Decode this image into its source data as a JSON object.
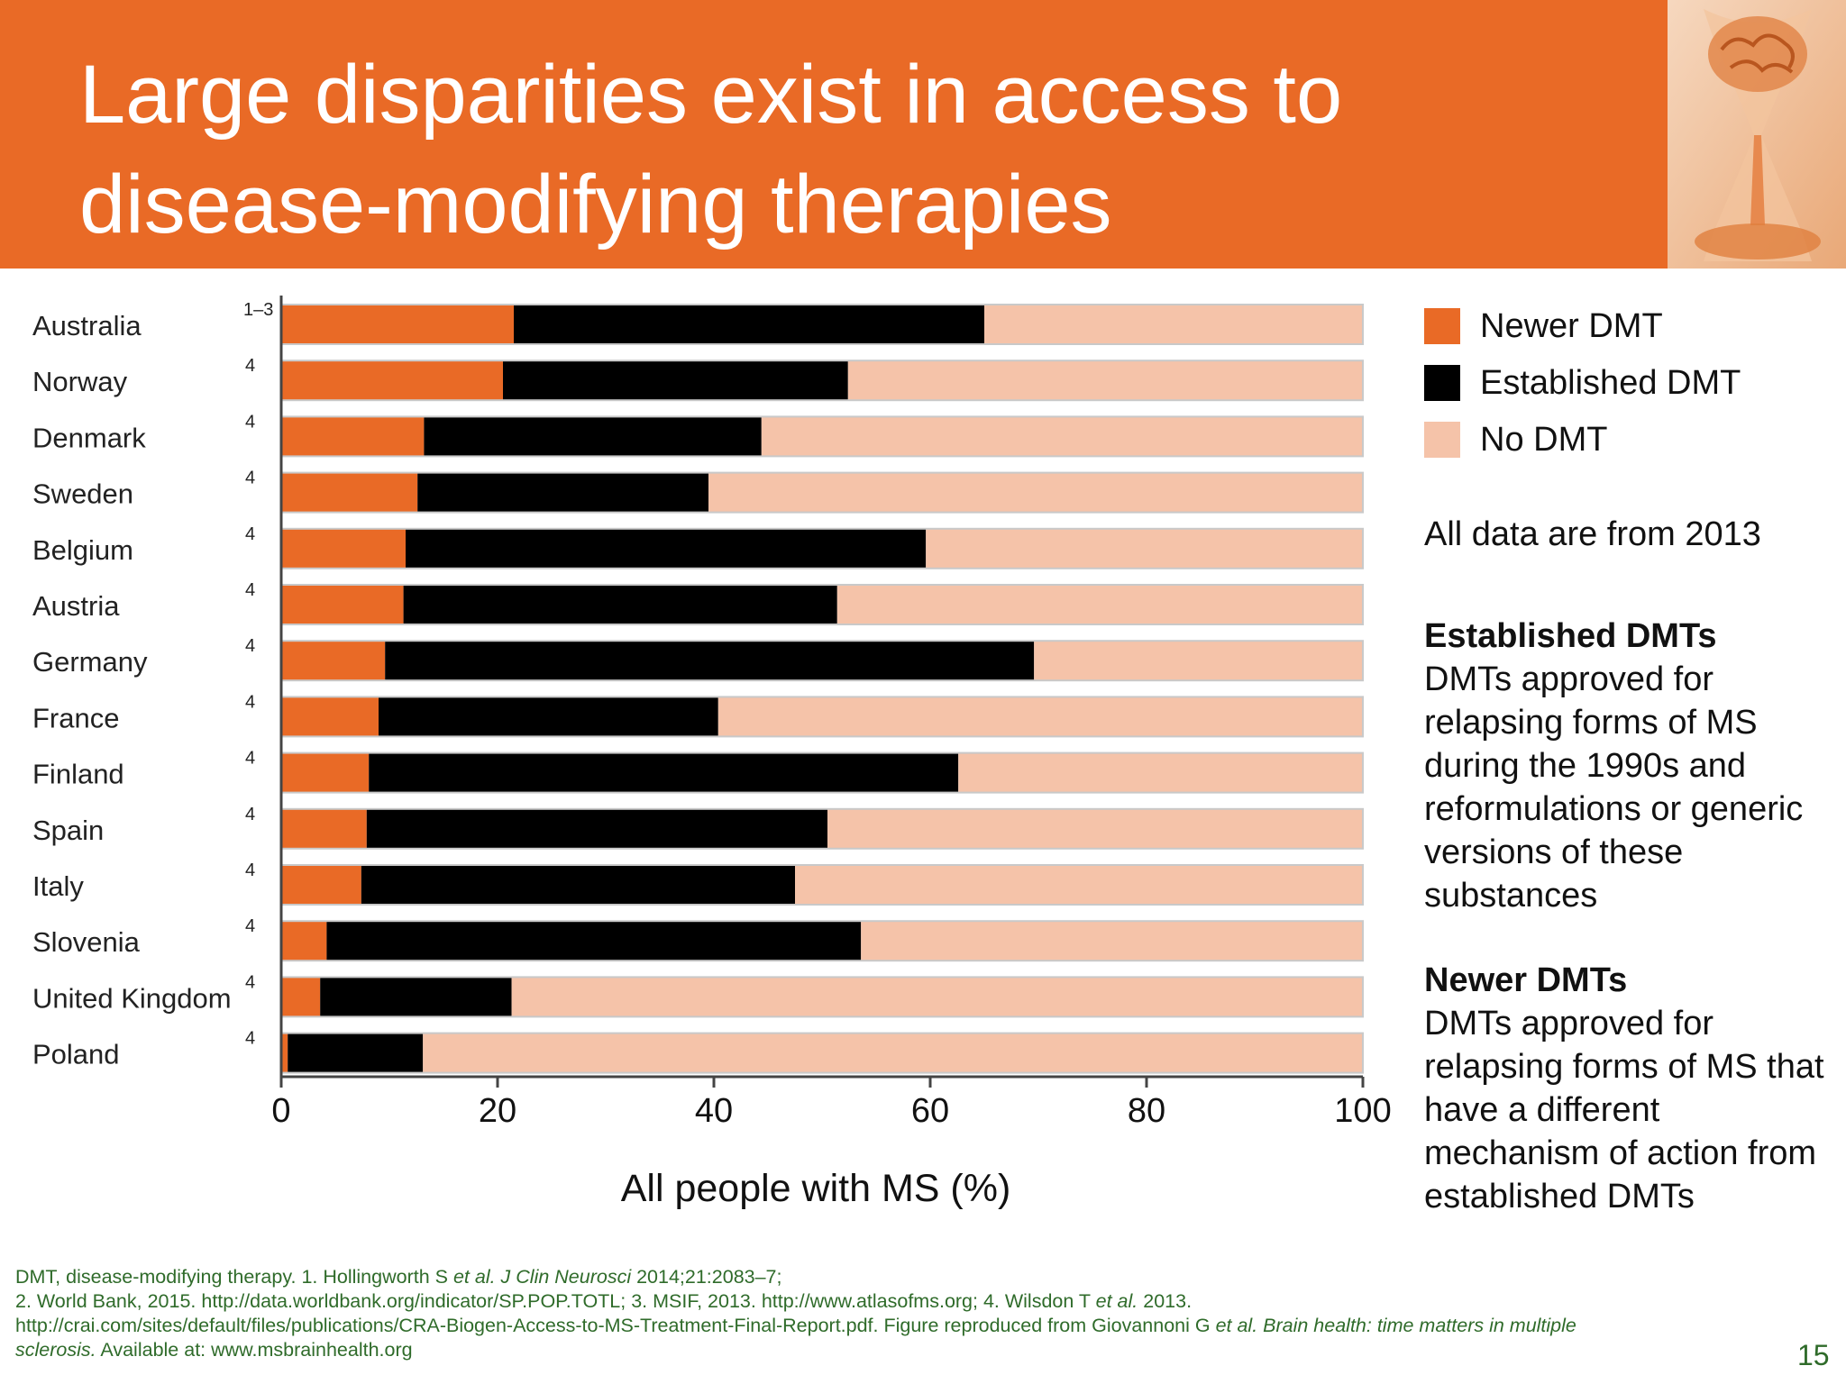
{
  "slide": {
    "title_line1": "Large disparities exist in access to",
    "title_line2": "disease-modifying therapies",
    "page_number": "15"
  },
  "legend": {
    "items": [
      {
        "label": "Newer DMT",
        "color": "#e96a26"
      },
      {
        "label": "Established DMT",
        "color": "#000000"
      },
      {
        "label": "No DMT",
        "color": "#f5c3a9"
      }
    ]
  },
  "notes": {
    "year_note": "All data are from 2013",
    "established_title": "Established DMTs",
    "established_body": "DMTs approved for relapsing forms of MS during the 1990s and reformulations or generic versions of these substances",
    "newer_title": "Newer DMTs",
    "newer_body": "DMTs approved for relapsing forms of MS that have a different mechanism of action from established DMTs"
  },
  "footnote": {
    "line1_a": "DMT, disease-modifying therapy. 1. Hollingworth S ",
    "line1_b": "et al. J Clin Neurosci",
    "line1_c": " 2014;21:2083–7;",
    "line2_a": "2. World Bank, 2015. http://data.worldbank.org/indicator/SP.POP.TOTL; 3. MSIF, 2013. http://www.atlasofms.org; 4. Wilsdon T ",
    "line2_b": "et al.",
    "line2_c": " 2013.",
    "line3_a": "http://crai.com/sites/default/files/publications/CRA-Biogen-Access-to-MS-Treatment-Final-Report.pdf. Figure reproduced from Giovannoni G ",
    "line3_b": "et al. Brain health: time matters in multiple",
    "line4_a": "sclerosis.",
    "line4_b": " Available at: www.msbrainhealth.org"
  },
  "chart_data": {
    "type": "bar",
    "orientation": "horizontal",
    "stacked": true,
    "categories": [
      "Australia",
      "Norway",
      "Denmark",
      "Sweden",
      "Belgium",
      "Austria",
      "Germany",
      "France",
      "Finland",
      "Spain",
      "Italy",
      "Slovenia",
      "United Kingdom",
      "Poland"
    ],
    "references": [
      "1–3",
      "4",
      "4",
      "4",
      "4",
      "4",
      "4",
      "4",
      "4",
      "4",
      "4",
      "4",
      "4",
      "4"
    ],
    "series": [
      {
        "name": "Newer DMT",
        "color": "#e96a26",
        "values": [
          21.5,
          20.5,
          13.2,
          12.6,
          11.5,
          11.3,
          9.6,
          9.0,
          8.1,
          7.9,
          7.4,
          4.2,
          3.6,
          0.6
        ]
      },
      {
        "name": "Established DMT",
        "color": "#000000",
        "values": [
          43.5,
          31.9,
          31.2,
          26.9,
          48.1,
          40.1,
          60.0,
          31.4,
          54.5,
          42.6,
          40.1,
          49.4,
          17.7,
          12.5
        ]
      },
      {
        "name": "No DMT",
        "color": "#f5c3a9",
        "values": [
          35.0,
          47.6,
          55.6,
          60.5,
          40.4,
          48.6,
          30.4,
          59.6,
          37.4,
          49.5,
          52.5,
          46.4,
          78.7,
          86.9
        ]
      }
    ],
    "xlabel": "All people with MS (%)",
    "ylabel": "",
    "xlim": [
      0,
      100
    ],
    "xticks": [
      0,
      20,
      40,
      60,
      80,
      100
    ],
    "xtick_labels": [
      "0",
      "20",
      "40",
      "60",
      "80",
      "100"
    ]
  }
}
